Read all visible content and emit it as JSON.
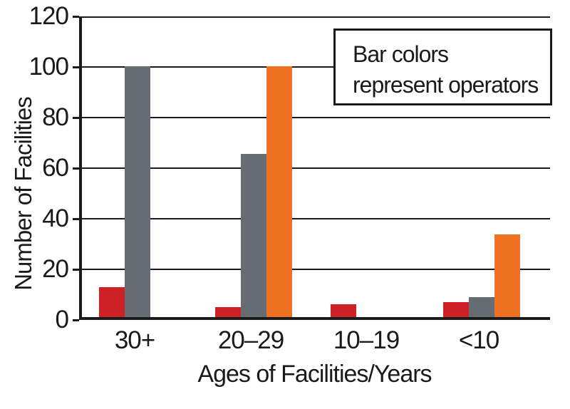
{
  "chart_data": {
    "type": "bar",
    "title": "",
    "categories": [
      "30+",
      "20–29",
      "10–19",
      "<10"
    ],
    "series": [
      {
        "name": "red-operator",
        "color": "#cd2027",
        "values": [
          12,
          4,
          5,
          6
        ]
      },
      {
        "name": "gray-operator",
        "color": "#666c74",
        "values": [
          100,
          65,
          0,
          8
        ]
      },
      {
        "name": "orange-operator",
        "color": "#ef7122",
        "values": [
          0,
          100,
          0,
          33
        ]
      }
    ],
    "xlabel": "Ages of Facilities/Years",
    "ylabel": "Number of Facilities",
    "ylim": [
      0,
      120
    ],
    "y_ticks": [
      "0",
      "20",
      "40",
      "60",
      "80",
      "100",
      "120"
    ],
    "grid": true,
    "legend_position": "top-right",
    "legend_lines": [
      "Bar colors",
      "represent operators"
    ],
    "axis_color": "#1a1a1a",
    "background_color": "#ffffff"
  }
}
